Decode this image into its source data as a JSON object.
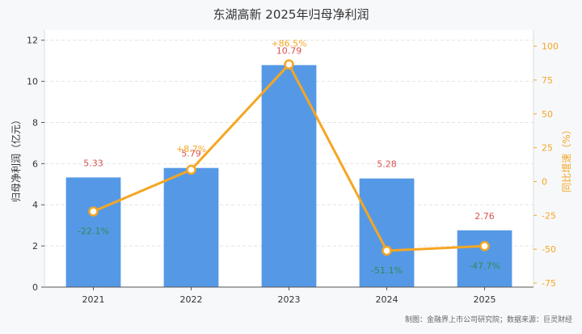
{
  "chart_data": {
    "type": "bar+line",
    "title": "东湖高新 2025年归母净利润",
    "categories": [
      "2021",
      "2022",
      "2023",
      "2024",
      "2025"
    ],
    "series": [
      {
        "name": "归母净利润（亿元）",
        "type": "bar",
        "axis": "left",
        "values": [
          5.33,
          5.79,
          10.79,
          5.28,
          2.76
        ],
        "labels": [
          "5.33",
          "5.79",
          "10.79",
          "5.28",
          "2.76"
        ]
      },
      {
        "name": "同比增速（%）",
        "type": "line",
        "axis": "right",
        "values": [
          -22.1,
          8.7,
          86.5,
          -51.1,
          -47.7
        ],
        "labels": [
          "-22.1%",
          "+8.7%",
          "+86.5%",
          "-51.1%",
          "-47.7%"
        ]
      }
    ],
    "ylabel_left": "归母净利润（亿元）",
    "ylabel_right": "同比增速（%）",
    "ylim_left": [
      0,
      12.5
    ],
    "yticks_left": [
      0,
      2,
      4,
      6,
      8,
      10,
      12
    ],
    "ylim_right": [
      -78,
      112
    ],
    "yticks_right": [
      -75,
      -50,
      -25,
      0,
      25,
      50,
      75,
      100
    ],
    "grid": true,
    "colors": {
      "bar": "#5599e6",
      "line": "#f5a623",
      "bar_label": "#d9534f",
      "positive_label": "#f5a623",
      "negative_label": "#2e8b57",
      "right_axis": "#f5a623"
    }
  },
  "footer": {
    "source": "制图：金融界上市公司研究院；数据来源：巨灵财经"
  }
}
